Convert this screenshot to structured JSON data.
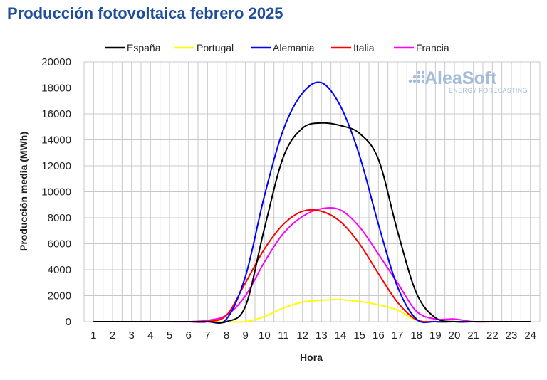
{
  "title": "Producción fotovoltaica febrero 2025",
  "logo": {
    "name": "AleaSoft",
    "tagline": "ENERGY FORECASTING"
  },
  "chart_data": {
    "type": "line",
    "xlabel": "Hora",
    "ylabel": "Producción media (MWh)",
    "x": [
      1,
      2,
      3,
      4,
      5,
      6,
      7,
      8,
      9,
      10,
      11,
      12,
      13,
      14,
      15,
      16,
      17,
      18,
      19,
      20,
      21,
      22,
      23,
      24
    ],
    "ylim": [
      0,
      20000
    ],
    "yticks": [
      0,
      2000,
      4000,
      6000,
      8000,
      10000,
      12000,
      14000,
      16000,
      18000,
      20000
    ],
    "grid": true,
    "legend_position": "top",
    "series": [
      {
        "name": "España",
        "color": "#000000",
        "values": [
          0,
          0,
          0,
          0,
          0,
          0,
          0,
          0,
          1200,
          7200,
          12700,
          14900,
          15300,
          15100,
          14500,
          12500,
          7000,
          2200,
          300,
          0,
          0,
          0,
          0,
          0
        ]
      },
      {
        "name": "Portugal",
        "color": "#ffff00",
        "values": [
          0,
          0,
          0,
          0,
          0,
          0,
          0,
          0,
          0,
          400,
          1050,
          1500,
          1650,
          1700,
          1550,
          1300,
          900,
          100,
          0,
          0,
          0,
          0,
          0,
          0
        ]
      },
      {
        "name": "Alemania",
        "color": "#0000ff",
        "values": [
          0,
          0,
          0,
          0,
          0,
          0,
          0,
          200,
          3500,
          9700,
          14800,
          17600,
          18400,
          16600,
          12800,
          7500,
          2700,
          200,
          0,
          0,
          0,
          0,
          0,
          0
        ]
      },
      {
        "name": "Italia",
        "color": "#ff0000",
        "values": [
          0,
          0,
          0,
          0,
          0,
          0,
          0,
          500,
          3000,
          5600,
          7500,
          8500,
          8500,
          7700,
          6000,
          3700,
          1500,
          150,
          0,
          0,
          0,
          0,
          0,
          0
        ]
      },
      {
        "name": "Francia",
        "color": "#ff00ff",
        "values": [
          0,
          0,
          0,
          0,
          0,
          0,
          100,
          500,
          2000,
          4600,
          6800,
          8100,
          8700,
          8600,
          7300,
          5200,
          3000,
          800,
          200,
          200,
          0,
          0,
          0,
          0
        ]
      }
    ]
  }
}
